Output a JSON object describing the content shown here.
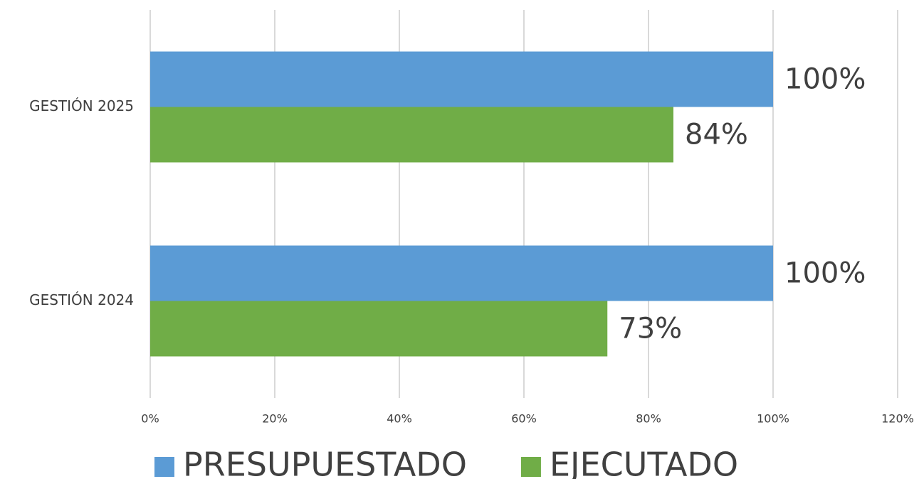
{
  "chart_data": {
    "type": "hbar",
    "categories": [
      "GESTIÓN 2025",
      "GESTIÓN 2024"
    ],
    "series": [
      {
        "name": "PRESUPUESTADO",
        "color": "#5b9bd5",
        "values": [
          100,
          100
        ],
        "value_labels": [
          "100%",
          "100%"
        ]
      },
      {
        "name": "EJECUTADO",
        "color": "#70ad47",
        "values": [
          84,
          73.4
        ],
        "value_labels": [
          "84%",
          "73%"
        ]
      }
    ],
    "xlim": [
      0,
      120
    ],
    "xticks": [
      {
        "value": 0,
        "label": "0%"
      },
      {
        "value": 20,
        "label": "20%"
      },
      {
        "value": 40,
        "label": "40%"
      },
      {
        "value": 60,
        "label": "60%"
      },
      {
        "value": 80,
        "label": "80%"
      },
      {
        "value": 100,
        "label": "100%"
      },
      {
        "value": 120,
        "label": "120%"
      }
    ],
    "grid": true,
    "legend": "bottom"
  }
}
